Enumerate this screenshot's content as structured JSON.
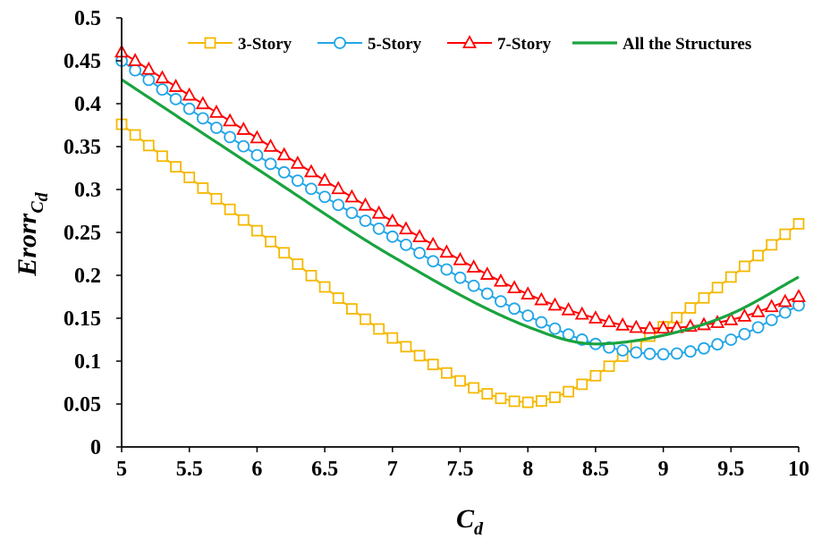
{
  "chart_data": {
    "type": "line",
    "xlabel_main": "C",
    "xlabel_sub": "d",
    "ylabel_main": "Erorr",
    "ylabel_sub_main": "C",
    "ylabel_sub_sub": "d",
    "xlim": [
      5,
      10
    ],
    "ylim": [
      0,
      0.5
    ],
    "xticks": [
      "5",
      "5.5",
      "6",
      "6.5",
      "7",
      "7.5",
      "8",
      "8.5",
      "9",
      "9.5",
      "10"
    ],
    "yticks": [
      "0",
      "0.05",
      "0.1",
      "0.15",
      "0.2",
      "0.25",
      "0.3",
      "0.35",
      "0.4",
      "0.45",
      "0.5"
    ],
    "grid": false,
    "legend_position": "top",
    "series": [
      {
        "name": "3-Story",
        "color": "#F5B800",
        "marker": "square",
        "anchors": [
          [
            5,
            0.376
          ],
          [
            6,
            0.252
          ],
          [
            7,
            0.127
          ],
          [
            8,
            0.052
          ],
          [
            9,
            0.14
          ],
          [
            10,
            0.26
          ]
        ]
      },
      {
        "name": "5-Story",
        "color": "#22A6E8",
        "marker": "circle",
        "anchors": [
          [
            5,
            0.45
          ],
          [
            6,
            0.34
          ],
          [
            7,
            0.245
          ],
          [
            8,
            0.153
          ],
          [
            8.5,
            0.12
          ],
          [
            9,
            0.108
          ],
          [
            9.5,
            0.125
          ],
          [
            10,
            0.165
          ]
        ]
      },
      {
        "name": "7-Story",
        "color": "#FF0000",
        "marker": "triangle",
        "anchors": [
          [
            5,
            0.46
          ],
          [
            6,
            0.36
          ],
          [
            7,
            0.263
          ],
          [
            8,
            0.178
          ],
          [
            8.5,
            0.15
          ],
          [
            8.9,
            0.138
          ],
          [
            9.5,
            0.148
          ],
          [
            10,
            0.175
          ]
        ]
      },
      {
        "name": "All the Structures",
        "color": "#1AA33F",
        "marker": "none",
        "anchors": [
          [
            5,
            0.428
          ],
          [
            6,
            0.324
          ],
          [
            7,
            0.222
          ],
          [
            8,
            0.14
          ],
          [
            8.5,
            0.12
          ],
          [
            9,
            0.13
          ],
          [
            9.5,
            0.155
          ],
          [
            10,
            0.198
          ]
        ]
      }
    ]
  }
}
